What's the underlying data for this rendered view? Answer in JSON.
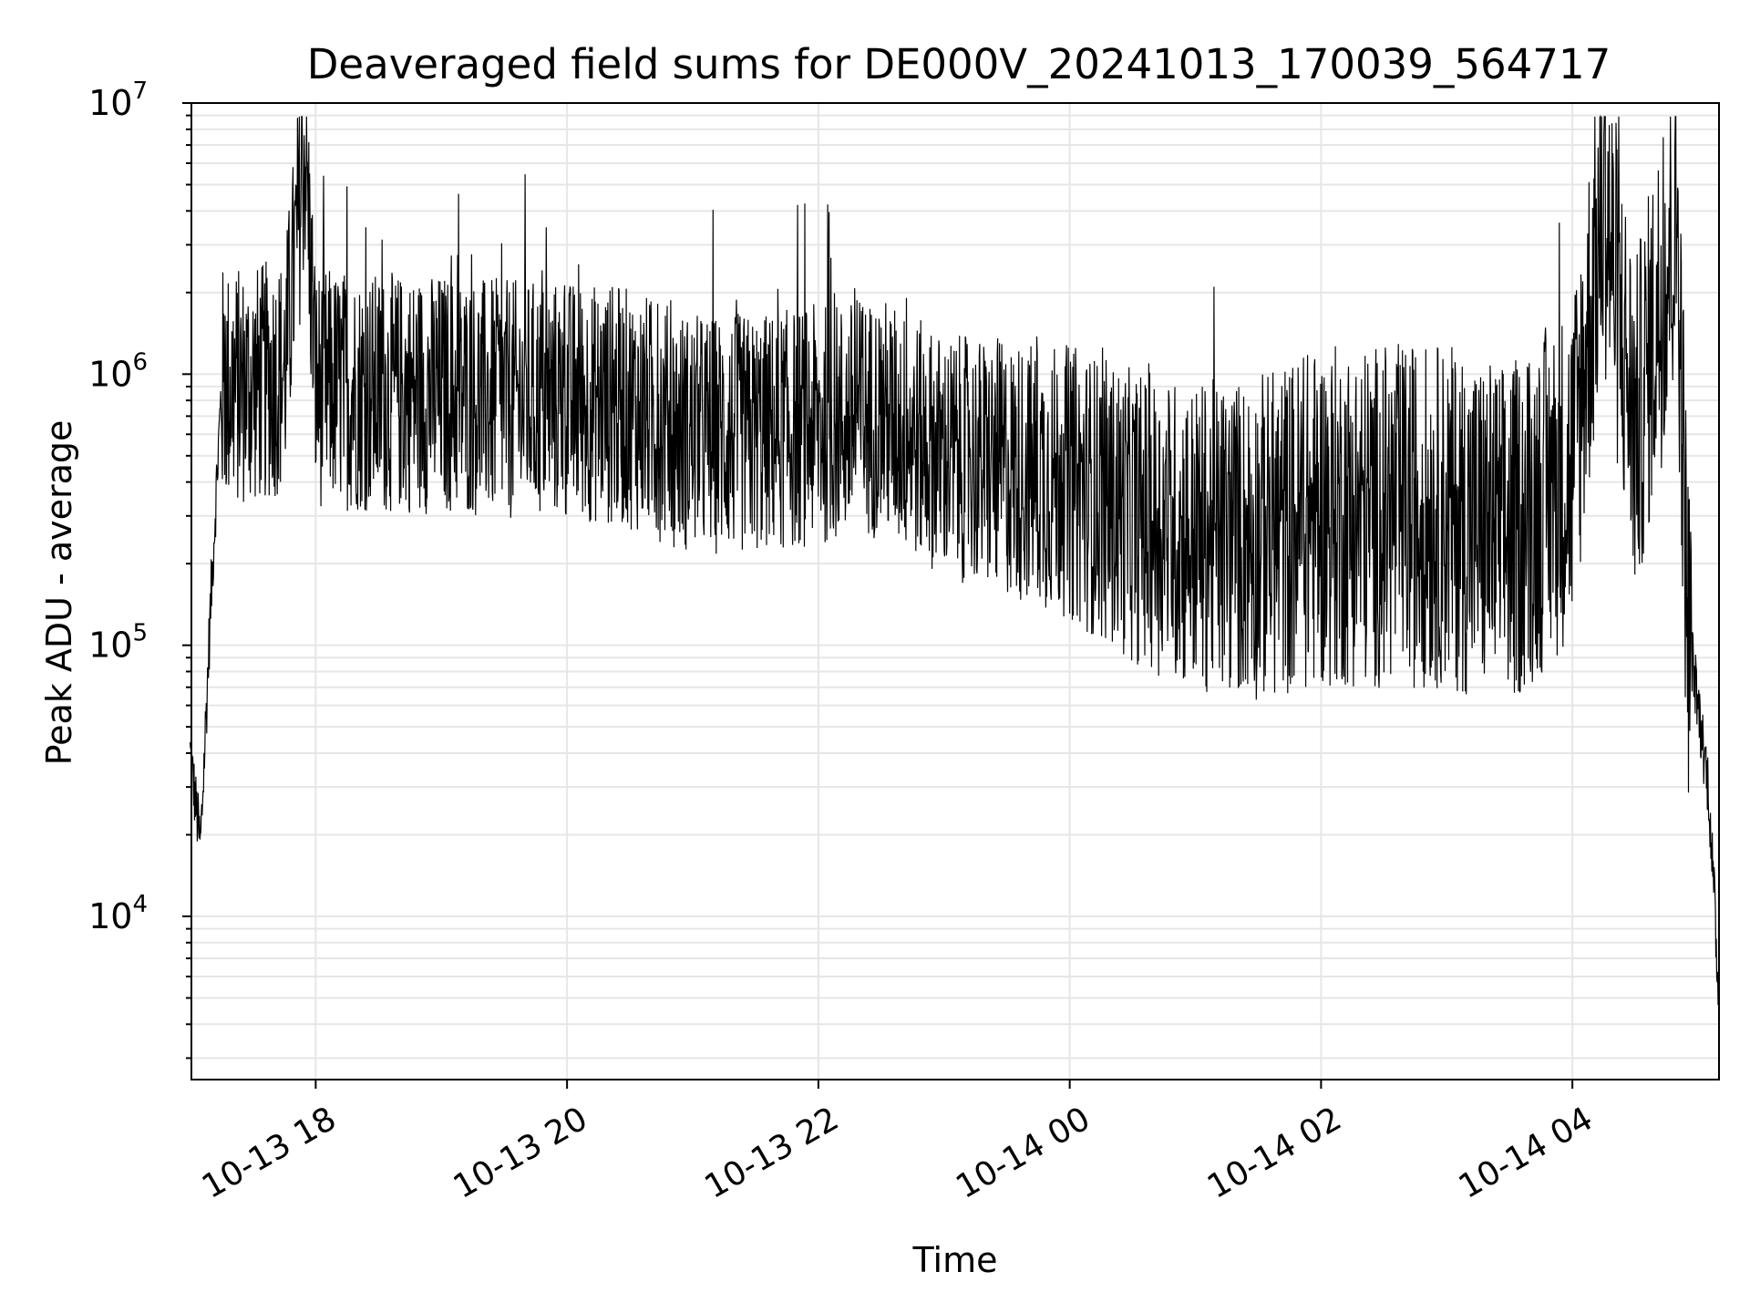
{
  "chart_data": {
    "type": "line",
    "title": "Deaveraged field sums for DE000V_20241013_170039_564717",
    "xlabel": "Time",
    "ylabel": "Peak ADU - average",
    "yscale": "log",
    "ylim": [
      2500,
      10000000
    ],
    "xlim": [
      "2024-10-13 17:00:39",
      "2024-10-14 05:10:00"
    ],
    "grid": true,
    "grid_minor": true,
    "line_color": "#000000",
    "grid_color": "#e6e6e6",
    "x_ticks": [
      {
        "value": "2024-10-13 18:00",
        "label": "10-13 18"
      },
      {
        "value": "2024-10-13 20:00",
        "label": "10-13 20"
      },
      {
        "value": "2024-10-13 22:00",
        "label": "10-13 22"
      },
      {
        "value": "2024-10-14 00:00",
        "label": "10-14 00"
      },
      {
        "value": "2024-10-14 02:00",
        "label": "10-14 02"
      },
      {
        "value": "2024-10-14 04:00",
        "label": "10-14 04"
      }
    ],
    "y_ticks": [
      {
        "value": 10000,
        "base": "10",
        "exp": "4"
      },
      {
        "value": 100000,
        "base": "10",
        "exp": "5"
      },
      {
        "value": 1000000,
        "base": "10",
        "exp": "6"
      },
      {
        "value": 10000000,
        "base": "10",
        "exp": "7"
      }
    ],
    "series": [
      {
        "points": [
          [
            "2024-10-13 17:00",
            40000
          ],
          [
            "2024-10-13 17:05",
            18000
          ],
          [
            "2024-10-13 17:10",
            150000
          ],
          [
            "2024-10-13 17:15",
            900000
          ],
          [
            "2024-10-13 17:30",
            900000
          ],
          [
            "2024-10-13 17:45",
            1000000
          ],
          [
            "2024-10-13 17:55",
            7000000
          ],
          [
            "2024-10-13 18:00",
            900000
          ],
          [
            "2024-10-13 18:30",
            850000
          ],
          [
            "2024-10-13 19:00",
            850000
          ],
          [
            "2024-10-13 19:30",
            800000
          ],
          [
            "2024-10-13 20:00",
            800000
          ],
          [
            "2024-10-13 20:30",
            750000
          ],
          [
            "2024-10-13 21:00",
            600000
          ],
          [
            "2024-10-13 21:30",
            600000
          ],
          [
            "2024-10-13 22:00",
            650000
          ],
          [
            "2024-10-13 22:30",
            700000
          ],
          [
            "2024-10-13 23:00",
            500000
          ],
          [
            "2024-10-13 23:30",
            450000
          ],
          [
            "2024-10-14 00:00",
            400000
          ],
          [
            "2024-10-14 00:30",
            300000
          ],
          [
            "2024-10-14 01:00",
            250000
          ],
          [
            "2024-10-14 01:30",
            250000
          ],
          [
            "2024-10-14 02:00",
            300000
          ],
          [
            "2024-10-14 02:30",
            300000
          ],
          [
            "2024-10-14 03:00",
            300000
          ],
          [
            "2024-10-14 03:30",
            250000
          ],
          [
            "2024-10-14 04:00",
            450000
          ],
          [
            "2024-10-14 04:15",
            4500000
          ],
          [
            "2024-10-14 04:30",
            600000
          ],
          [
            "2024-10-14 04:50",
            4000000
          ],
          [
            "2024-10-14 04:55",
            120000
          ],
          [
            "2024-10-14 05:05",
            30000
          ],
          [
            "2024-10-14 05:10",
            5000
          ]
        ]
      }
    ]
  }
}
